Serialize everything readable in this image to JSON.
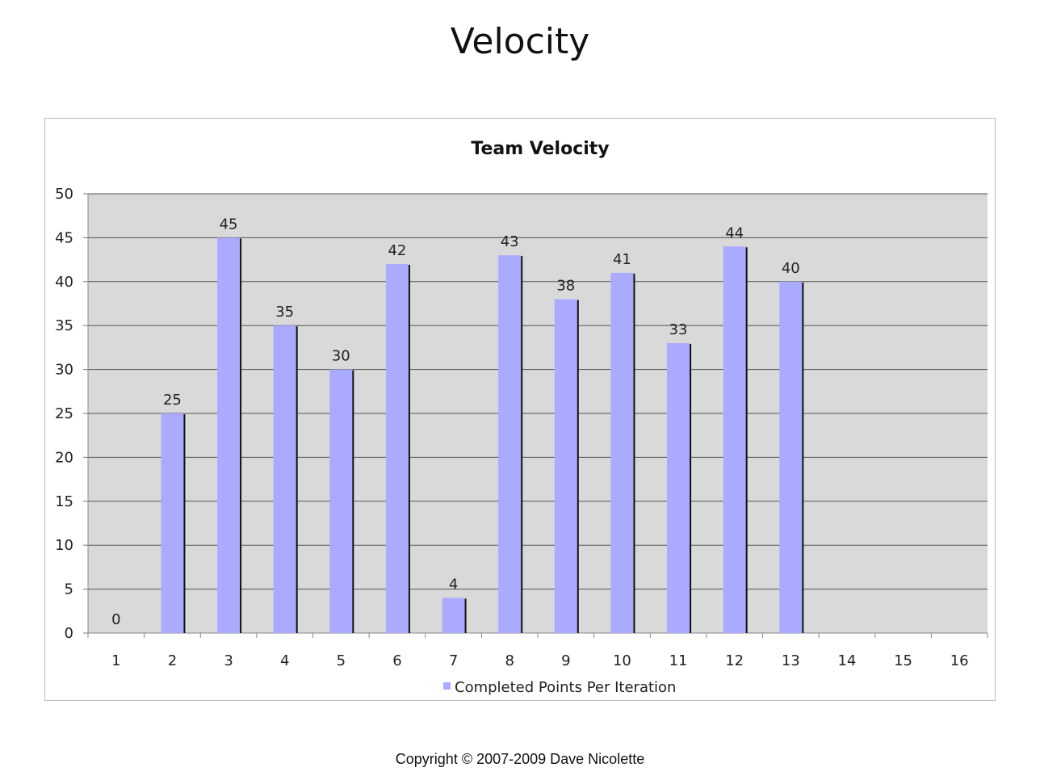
{
  "slide": {
    "title": "Velocity",
    "copyright": "Copyright © 2007-2009 Dave Nicolette"
  },
  "chart_data": {
    "type": "bar",
    "title": "Team Velocity",
    "categories": [
      "1",
      "2",
      "3",
      "4",
      "5",
      "6",
      "7",
      "8",
      "9",
      "10",
      "11",
      "12",
      "13",
      "14",
      "15",
      "16"
    ],
    "series": [
      {
        "name": "Completed Points Per Iteration",
        "values": [
          0,
          25,
          45,
          35,
          30,
          42,
          4,
          43,
          38,
          41,
          33,
          44,
          40,
          null,
          null,
          null
        ],
        "color": "#aaaaff"
      }
    ],
    "ylim": [
      0,
      50
    ],
    "yticks": [
      0,
      5,
      10,
      15,
      20,
      25,
      30,
      35,
      40,
      45,
      50
    ],
    "grid": true,
    "plot_background": "#d9d9d9",
    "legend_position": "bottom",
    "data_labels": true
  }
}
